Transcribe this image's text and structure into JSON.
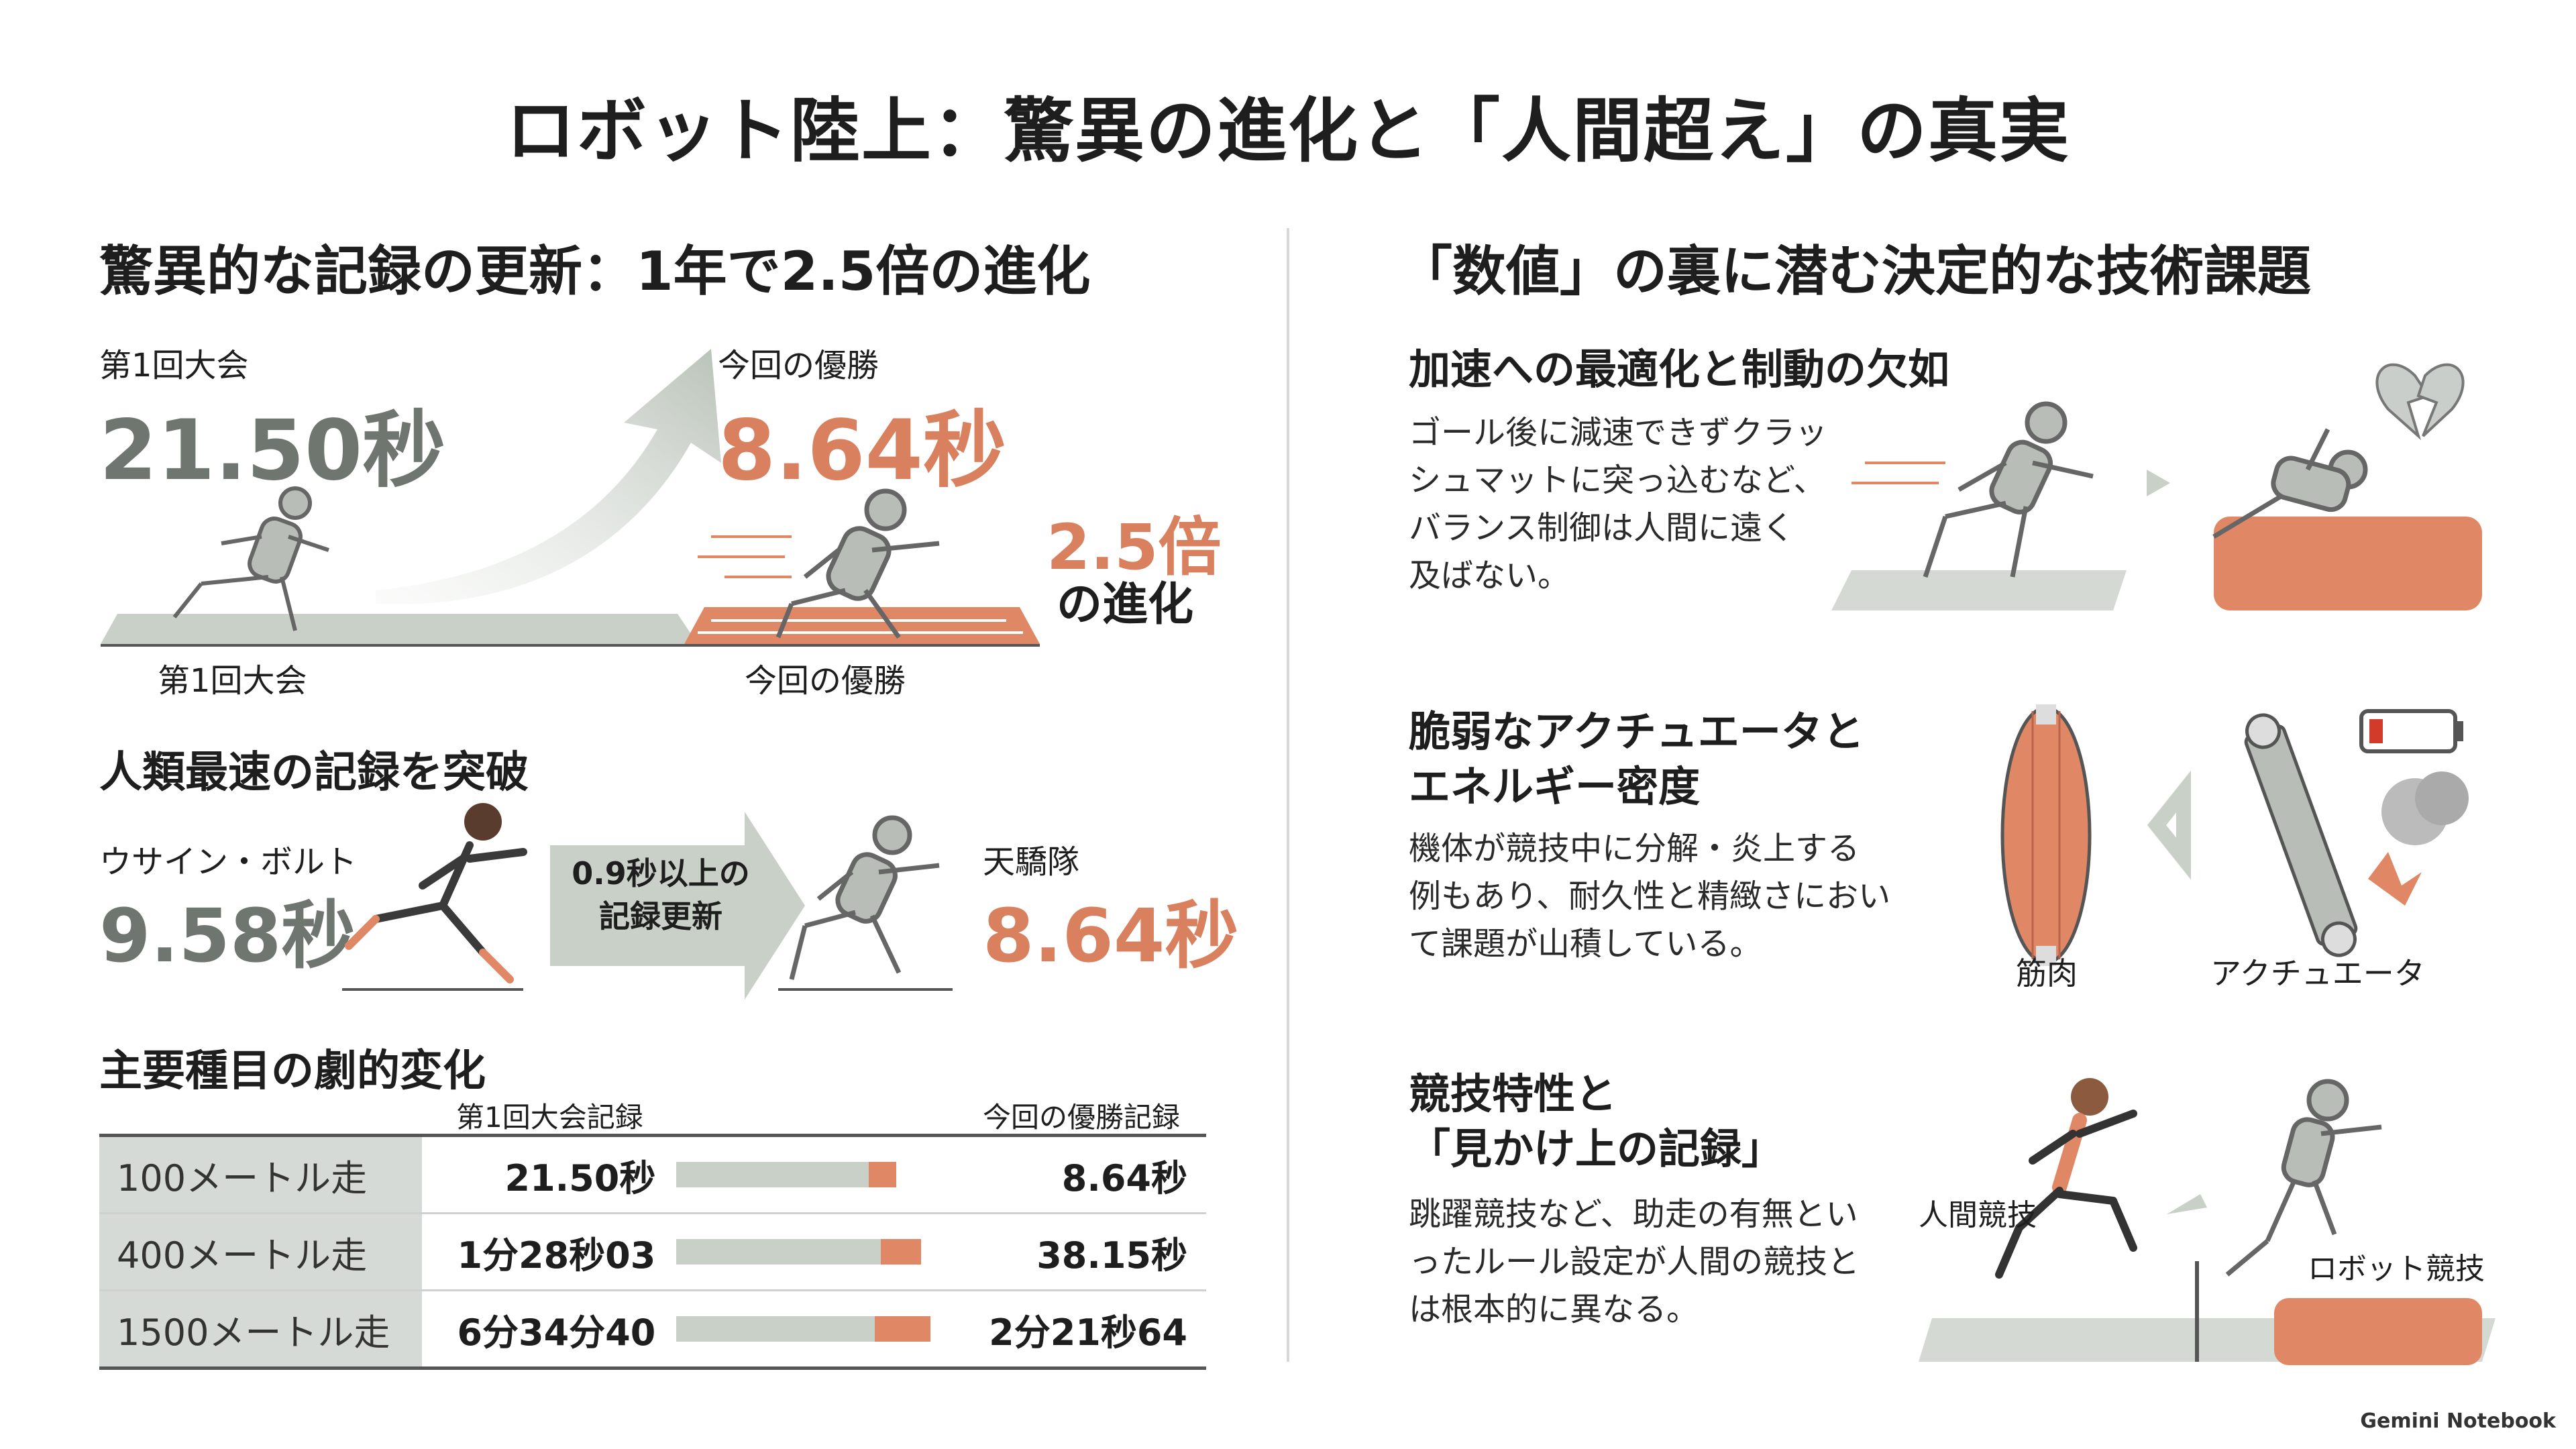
{
  "title": "ロボット陸上：驚異の進化と「人間超え」の真実",
  "left": {
    "section1": {
      "heading": "驚異的な記録の更新：1年で2.5倍の進化",
      "first_label": "第1回大会",
      "first_time": "21.50秒",
      "now_label": "今回の優勝",
      "now_time": "8.64秒",
      "ratio": "2.5倍",
      "ratio_sub": "の進化",
      "track_label_left": "第1回大会",
      "track_label_right": "今回の優勝"
    },
    "section2": {
      "heading": "人類最速の記録を突破",
      "human_name": "ウサイン・ボルト",
      "human_time": "9.58秒",
      "arrow_text_1": "0.9秒以上の",
      "arrow_text_2": "記録更新",
      "robot_name": "天驕隊",
      "robot_time": "8.64秒"
    },
    "section3": {
      "heading": "主要種目の劇的変化",
      "col_first": "第1回大会記録",
      "col_now": "今回の優勝記録",
      "rows": [
        {
          "event": "100メートル走",
          "first": "21.50秒",
          "now": "8.64秒",
          "first_fraction": 0.62,
          "now_fraction": 0.18
        },
        {
          "event": "400メートル走",
          "first": "1分28秒03",
          "now": "38.15秒",
          "first_fraction": 0.66,
          "now_fraction": 0.26
        },
        {
          "event": "1500メートル走",
          "first": "6分34分40",
          "now": "2分21秒64",
          "first_fraction": 0.64,
          "now_fraction": 0.36
        }
      ]
    }
  },
  "right": {
    "heading": "「数値」の裏に潜む決定的な技術課題",
    "block1": {
      "title": "加速への最適化と制動の欠如",
      "desc": [
        "ゴール後に減速できずクラッ",
        "シュマットに突っ込むなど、",
        "バランス制御は人間に遠く",
        "及ばない。"
      ]
    },
    "block2": {
      "title": [
        "脆弱なアクチュエータと",
        "エネルギー密度"
      ],
      "desc": [
        "機体が競技中に分解・炎上する",
        "例もあり、耐久性と精緻さにおい",
        "て課題が山積している。"
      ],
      "muscle_label": "筋肉",
      "actuator_label": "アクチュエータ"
    },
    "block3": {
      "title": [
        "競技特性と",
        "「見かけ上の記録」"
      ],
      "desc": [
        "跳躍競技など、助走の有無とい",
        "ったルール設定が人間の競技と",
        "は根本的に異なる。"
      ],
      "human_label": "人間競技",
      "robot_label": "ロボット競技"
    }
  },
  "footer": "Gemini Notebook",
  "colors": {
    "accent": "#d9805f",
    "gray": "#6f756f",
    "track_gray": "#c9d0c8"
  }
}
